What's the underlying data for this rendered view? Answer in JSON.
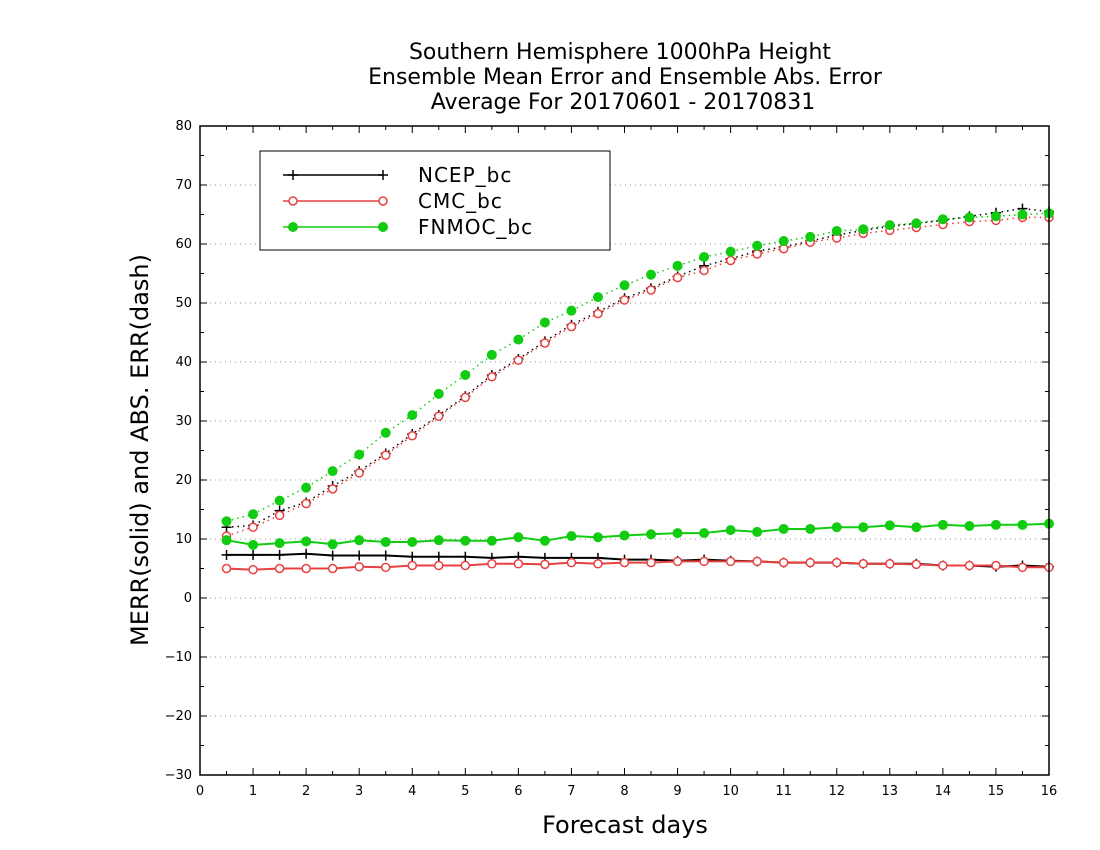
{
  "chart_data": {
    "type": "line",
    "title_lines": [
      "Southern Hemisphere 1000hPa Height",
      "Ensemble Mean Error and Ensemble Abs. Error",
      "Average For 20170601 - 20170831"
    ],
    "xlabel": "Forecast days",
    "ylabel": "MERR(solid) and ABS. ERR(dash)",
    "xlim": [
      0,
      16
    ],
    "ylim": [
      -30,
      80
    ],
    "x_ticks": [
      0,
      1,
      2,
      3,
      4,
      5,
      6,
      7,
      8,
      9,
      10,
      11,
      12,
      13,
      14,
      15,
      16
    ],
    "y_ticks": [
      -30,
      -20,
      -10,
      0,
      10,
      20,
      30,
      40,
      50,
      60,
      70,
      80
    ],
    "grid": "horizontal dotted",
    "legend_placement": "top-left",
    "x": [
      0.5,
      1,
      1.5,
      2,
      2.5,
      3,
      3.5,
      4,
      4.5,
      5,
      5.5,
      6,
      6.5,
      7,
      7.5,
      8,
      8.5,
      9,
      9.5,
      10,
      10.5,
      11,
      11.5,
      12,
      12.5,
      13,
      13.5,
      14,
      14.5,
      15,
      15.5,
      16
    ],
    "series": [
      {
        "name": "NCEP_bc",
        "color": "#000000",
        "marker": "plus",
        "merr_solid": [
          7.3,
          7.3,
          7.3,
          7.5,
          7.2,
          7.2,
          7.2,
          7.0,
          7.0,
          7.0,
          6.8,
          7.0,
          6.8,
          6.8,
          6.8,
          6.5,
          6.5,
          6.3,
          6.5,
          6.3,
          6.2,
          6.0,
          6.0,
          6.0,
          5.8,
          5.8,
          5.8,
          5.5,
          5.5,
          5.3,
          5.5,
          5.3
        ],
        "abs_err_dash": [
          12.0,
          12.3,
          14.8,
          16.2,
          19.0,
          21.5,
          24.5,
          27.8,
          31.0,
          34.2,
          37.8,
          40.5,
          43.5,
          46.3,
          48.5,
          50.8,
          52.5,
          54.5,
          56.3,
          57.5,
          58.8,
          59.5,
          60.5,
          61.5,
          62.3,
          63.0,
          63.5,
          64.0,
          64.7,
          65.3,
          66.0,
          65.5
        ]
      },
      {
        "name": "CMC_bc",
        "color": "#e84040",
        "marker": "open-circle",
        "merr_solid": [
          5.0,
          4.8,
          5.0,
          5.0,
          5.0,
          5.3,
          5.2,
          5.5,
          5.5,
          5.5,
          5.8,
          5.8,
          5.7,
          6.0,
          5.8,
          6.0,
          6.0,
          6.2,
          6.2,
          6.2,
          6.2,
          6.0,
          6.0,
          6.0,
          5.8,
          5.8,
          5.7,
          5.5,
          5.5,
          5.5,
          5.2,
          5.2
        ],
        "abs_err_dash": [
          10.5,
          12.0,
          14.0,
          16.0,
          18.5,
          21.2,
          24.2,
          27.5,
          30.8,
          34.0,
          37.5,
          40.3,
          43.2,
          46.0,
          48.2,
          50.5,
          52.2,
          54.3,
          55.5,
          57.2,
          58.3,
          59.2,
          60.3,
          61.0,
          61.8,
          62.3,
          62.8,
          63.3,
          63.8,
          64.0,
          64.5,
          64.5
        ]
      },
      {
        "name": "FNMOC_bc",
        "color": "#11cc11",
        "marker": "filled-circle",
        "merr_solid": [
          9.8,
          9.0,
          9.3,
          9.6,
          9.1,
          9.8,
          9.5,
          9.5,
          9.8,
          9.7,
          9.7,
          10.3,
          9.7,
          10.5,
          10.3,
          10.6,
          10.8,
          11.0,
          11.0,
          11.5,
          11.2,
          11.7,
          11.7,
          12.0,
          12.0,
          12.3,
          12.0,
          12.4,
          12.2,
          12.4,
          12.4,
          12.6
        ],
        "abs_err_dash": [
          13.0,
          14.2,
          16.5,
          18.7,
          21.5,
          24.3,
          28.0,
          31.0,
          34.6,
          37.8,
          41.2,
          43.8,
          46.7,
          48.7,
          51.0,
          53.0,
          54.8,
          56.3,
          57.8,
          58.7,
          59.7,
          60.5,
          61.2,
          62.2,
          62.5,
          63.2,
          63.5,
          64.2,
          64.5,
          64.7,
          65.0,
          65.2
        ]
      }
    ]
  }
}
